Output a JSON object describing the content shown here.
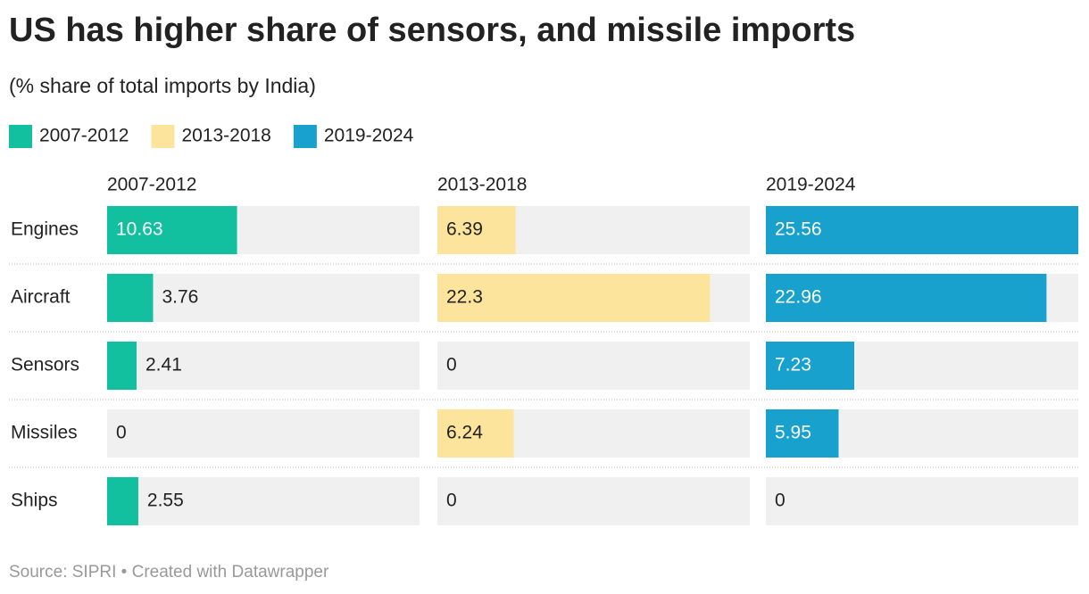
{
  "chart_data": {
    "type": "bar",
    "title": "US has higher share of sensors, and missile imports",
    "subtitle": "(% share of total imports by India)",
    "categories": [
      "Engines",
      "Aircraft",
      "Sensors",
      "Missiles",
      "Ships"
    ],
    "series": [
      {
        "name": "2007-2012",
        "color": "#12bf9e",
        "values": [
          10.63,
          3.76,
          2.41,
          0,
          2.55
        ]
      },
      {
        "name": "2013-2018",
        "color": "#fde49c",
        "values": [
          6.39,
          22.3,
          0,
          6.24,
          0
        ]
      },
      {
        "name": "2019-2024",
        "color": "#19a1cd",
        "values": [
          25.56,
          22.96,
          7.23,
          5.95,
          0
        ]
      }
    ],
    "xlim": [
      0,
      25.56
    ],
    "source": "Source: SIPRI • Created with Datawrapper"
  }
}
